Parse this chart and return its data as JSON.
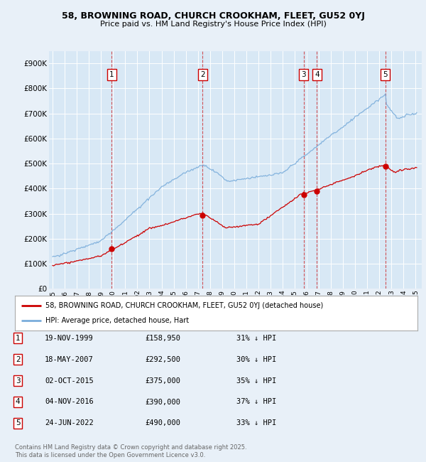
{
  "title": "58, BROWNING ROAD, CHURCH CROOKHAM, FLEET, GU52 0YJ",
  "subtitle": "Price paid vs. HM Land Registry's House Price Index (HPI)",
  "background_color": "#e8f0f8",
  "plot_bg_color": "#d8e8f5",
  "transactions": [
    {
      "num": 1,
      "date": "19-NOV-1999",
      "year": 1999.88,
      "price": 158950,
      "pct": "31%",
      "dir": "↓"
    },
    {
      "num": 2,
      "date": "18-MAY-2007",
      "year": 2007.38,
      "price": 292500,
      "pct": "30%",
      "dir": "↓"
    },
    {
      "num": 3,
      "date": "02-OCT-2015",
      "year": 2015.75,
      "price": 375000,
      "pct": "35%",
      "dir": "↓"
    },
    {
      "num": 4,
      "date": "04-NOV-2016",
      "year": 2016.84,
      "price": 390000,
      "pct": "37%",
      "dir": "↓"
    },
    {
      "num": 5,
      "date": "24-JUN-2022",
      "year": 2022.48,
      "price": 490000,
      "pct": "33%",
      "dir": "↓"
    }
  ],
  "legend_line1": "58, BROWNING ROAD, CHURCH CROOKHAM, FLEET, GU52 0YJ (detached house)",
  "legend_line2": "HPI: Average price, detached house, Hart",
  "footer": "Contains HM Land Registry data © Crown copyright and database right 2025.\nThis data is licensed under the Open Government Licence v3.0.",
  "red_color": "#cc0000",
  "blue_color": "#7aaddb",
  "ylim_max": 950000,
  "xlim_start": 1994.7,
  "xlim_end": 2025.5
}
